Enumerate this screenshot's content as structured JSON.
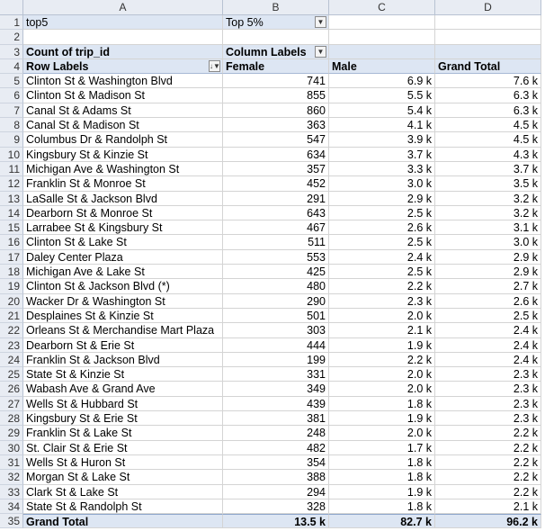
{
  "columns": [
    "A",
    "B",
    "C",
    "D"
  ],
  "row_numbers": [
    "1",
    "2",
    "3",
    "4",
    "5",
    "6",
    "7",
    "8",
    "9",
    "10",
    "11",
    "12",
    "13",
    "14",
    "15",
    "16",
    "17",
    "18",
    "19",
    "20",
    "21",
    "22",
    "23",
    "24",
    "25",
    "26",
    "27",
    "28",
    "29",
    "30",
    "31",
    "32",
    "33",
    "34",
    "35"
  ],
  "filter": {
    "field": "top5",
    "value": "Top 5%"
  },
  "pivot": {
    "value_label": "Count of trip_id",
    "column_labels": "Column Labels",
    "row_labels": "Row Labels",
    "headers": [
      "Female",
      "Male",
      "Grand Total"
    ]
  },
  "rows": [
    {
      "label": "Clinton St & Washington Blvd",
      "female": "741",
      "male": "6.9 k",
      "total": "7.6 k"
    },
    {
      "label": "Clinton St & Madison St",
      "female": "855",
      "male": "5.5 k",
      "total": "6.3 k"
    },
    {
      "label": "Canal St & Adams St",
      "female": "860",
      "male": "5.4 k",
      "total": "6.3 k"
    },
    {
      "label": "Canal St & Madison St",
      "female": "363",
      "male": "4.1 k",
      "total": "4.5 k"
    },
    {
      "label": "Columbus Dr & Randolph St",
      "female": "547",
      "male": "3.9 k",
      "total": "4.5 k"
    },
    {
      "label": "Kingsbury St & Kinzie St",
      "female": "634",
      "male": "3.7 k",
      "total": "4.3 k"
    },
    {
      "label": "Michigan Ave & Washington St",
      "female": "357",
      "male": "3.3 k",
      "total": "3.7 k"
    },
    {
      "label": "Franklin St & Monroe St",
      "female": "452",
      "male": "3.0 k",
      "total": "3.5 k"
    },
    {
      "label": "LaSalle St & Jackson Blvd",
      "female": "291",
      "male": "2.9 k",
      "total": "3.2 k"
    },
    {
      "label": "Dearborn St & Monroe St",
      "female": "643",
      "male": "2.5 k",
      "total": "3.2 k"
    },
    {
      "label": "Larrabee St & Kingsbury St",
      "female": "467",
      "male": "2.6 k",
      "total": "3.1 k"
    },
    {
      "label": "Clinton St & Lake St",
      "female": "511",
      "male": "2.5 k",
      "total": "3.0 k"
    },
    {
      "label": "Daley Center Plaza",
      "female": "553",
      "male": "2.4 k",
      "total": "2.9 k"
    },
    {
      "label": "Michigan Ave & Lake St",
      "female": "425",
      "male": "2.5 k",
      "total": "2.9 k"
    },
    {
      "label": "Clinton St & Jackson Blvd (*)",
      "female": "480",
      "male": "2.2 k",
      "total": "2.7 k"
    },
    {
      "label": "Wacker Dr & Washington St",
      "female": "290",
      "male": "2.3 k",
      "total": "2.6 k"
    },
    {
      "label": "Desplaines St & Kinzie St",
      "female": "501",
      "male": "2.0 k",
      "total": "2.5 k"
    },
    {
      "label": "Orleans St & Merchandise Mart Plaza",
      "female": "303",
      "male": "2.1 k",
      "total": "2.4 k"
    },
    {
      "label": "Dearborn St & Erie St",
      "female": "444",
      "male": "1.9 k",
      "total": "2.4 k"
    },
    {
      "label": "Franklin St & Jackson Blvd",
      "female": "199",
      "male": "2.2 k",
      "total": "2.4 k"
    },
    {
      "label": "State St & Kinzie St",
      "female": "331",
      "male": "2.0 k",
      "total": "2.3 k"
    },
    {
      "label": "Wabash Ave & Grand Ave",
      "female": "349",
      "male": "2.0 k",
      "total": "2.3 k"
    },
    {
      "label": "Wells St & Hubbard St",
      "female": "439",
      "male": "1.8 k",
      "total": "2.3 k"
    },
    {
      "label": "Kingsbury St & Erie St",
      "female": "381",
      "male": "1.9 k",
      "total": "2.3 k"
    },
    {
      "label": "Franklin St & Lake St",
      "female": "248",
      "male": "2.0 k",
      "total": "2.2 k"
    },
    {
      "label": "St. Clair St & Erie St",
      "female": "482",
      "male": "1.7 k",
      "total": "2.2 k"
    },
    {
      "label": "Wells St & Huron St",
      "female": "354",
      "male": "1.8 k",
      "total": "2.2 k"
    },
    {
      "label": "Morgan St & Lake St",
      "female": "388",
      "male": "1.8 k",
      "total": "2.2 k"
    },
    {
      "label": "Clark St & Lake St",
      "female": "294",
      "male": "1.9 k",
      "total": "2.2 k"
    },
    {
      "label": "State St & Randolph St",
      "female": "328",
      "male": "1.8 k",
      "total": "2.1 k"
    }
  ],
  "grand_total": {
    "label": "Grand Total",
    "female": "13.5 k",
    "male": "82.7 k",
    "total": "96.2 k"
  },
  "icons": {
    "filter_button": "filter-icon",
    "sort_button": "sort-filter-icon"
  }
}
